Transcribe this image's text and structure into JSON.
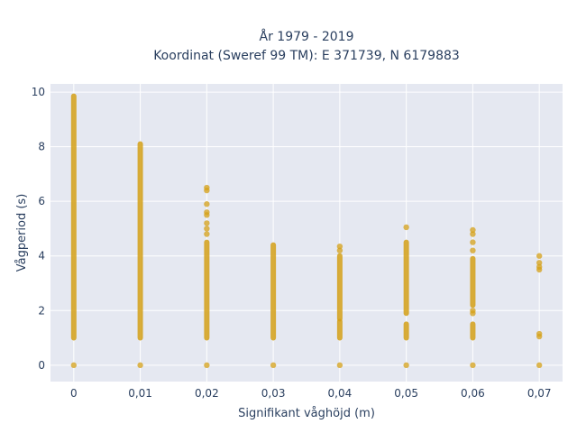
{
  "chart_data": {
    "type": "scatter",
    "title_lines": [
      "År 1979 - 2019",
      "Koordinat (Sweref 99 TM): E 371739, N 6179883"
    ],
    "xlabel": "Signifikant våghöjd (m)",
    "ylabel": "Vågperiod (s)",
    "xlim": [
      -0.0035,
      0.0735
    ],
    "ylim": [
      -0.6,
      10.3
    ],
    "x_ticks": [
      0,
      0.01,
      0.02,
      0.03,
      0.04,
      0.05,
      0.06,
      0.07
    ],
    "x_tick_labels": [
      "0",
      "0,01",
      "0,02",
      "0,03",
      "0,04",
      "0,05",
      "0,06",
      "0,07"
    ],
    "y_ticks": [
      0,
      2,
      4,
      6,
      8,
      10
    ],
    "y_tick_labels": [
      "0",
      "2",
      "4",
      "6",
      "8",
      "10"
    ],
    "grid": true,
    "marker_color": "#d4a017",
    "background_color": "#e5e8f1",
    "series": [
      {
        "points": [
          {
            "x": 0,
            "y": 0
          },
          {
            "x": 0,
            "y_range": [
              1.0,
              9.85
            ]
          },
          {
            "x": 0.01,
            "y": 0
          },
          {
            "x": 0.01,
            "y_range": [
              1.0,
              8.1
            ]
          },
          {
            "x": 0.02,
            "y": 0
          },
          {
            "x": 0.02,
            "y_range": [
              1.0,
              4.5
            ]
          },
          {
            "x": 0.02,
            "y": 4.8
          },
          {
            "x": 0.02,
            "y": 5.0
          },
          {
            "x": 0.02,
            "y": 5.2
          },
          {
            "x": 0.02,
            "y": 5.5
          },
          {
            "x": 0.02,
            "y": 5.6
          },
          {
            "x": 0.02,
            "y": 5.9
          },
          {
            "x": 0.02,
            "y": 6.4
          },
          {
            "x": 0.02,
            "y": 6.5
          },
          {
            "x": 0.03,
            "y": 0
          },
          {
            "x": 0.03,
            "y_range": [
              1.0,
              4.4
            ]
          },
          {
            "x": 0.04,
            "y": 0
          },
          {
            "x": 0.04,
            "y_range": [
              1.0,
              1.6
            ]
          },
          {
            "x": 0.04,
            "y_range": [
              1.7,
              4.0
            ]
          },
          {
            "x": 0.04,
            "y": 4.2
          },
          {
            "x": 0.04,
            "y": 4.35
          },
          {
            "x": 0.05,
            "y": 0
          },
          {
            "x": 0.05,
            "y_range": [
              1.0,
              1.5
            ]
          },
          {
            "x": 0.05,
            "y_range": [
              1.9,
              4.5
            ]
          },
          {
            "x": 0.05,
            "y": 5.05
          },
          {
            "x": 0.06,
            "y": 0
          },
          {
            "x": 0.06,
            "y_range": [
              1.0,
              1.5
            ]
          },
          {
            "x": 0.06,
            "y": 1.9
          },
          {
            "x": 0.06,
            "y": 2.0
          },
          {
            "x": 0.06,
            "y_range": [
              2.2,
              3.9
            ]
          },
          {
            "x": 0.06,
            "y": 4.2
          },
          {
            "x": 0.06,
            "y": 4.5
          },
          {
            "x": 0.06,
            "y": 4.8
          },
          {
            "x": 0.06,
            "y": 4.95
          },
          {
            "x": 0.07,
            "y": 0
          },
          {
            "x": 0.07,
            "y": 1.05
          },
          {
            "x": 0.07,
            "y": 1.15
          },
          {
            "x": 0.07,
            "y": 3.5
          },
          {
            "x": 0.07,
            "y": 3.6
          },
          {
            "x": 0.07,
            "y": 3.75
          },
          {
            "x": 0.07,
            "y": 4.0
          }
        ]
      }
    ]
  }
}
